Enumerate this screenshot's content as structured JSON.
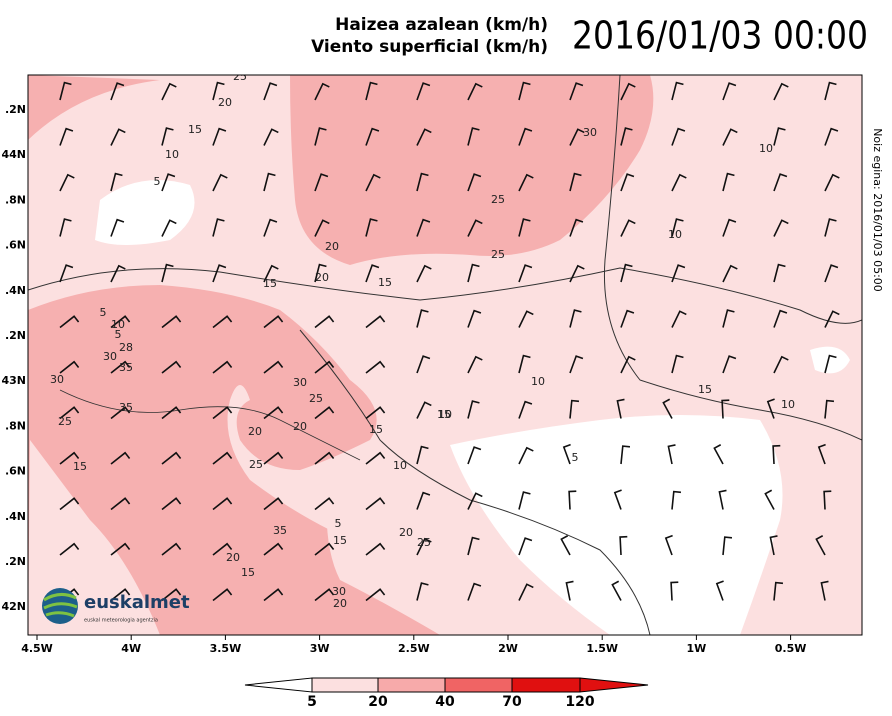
{
  "header": {
    "title_line1": "Haizea azalean (km/h)",
    "title_line2": "Viento superficial (km/h)",
    "date": "2016/01/03 00:00"
  },
  "side_note": "Noiz egina: 2016/01/03 05:00",
  "lat_labels": [
    ".2N",
    "44N",
    ".8N",
    ".6N",
    ".4N",
    ".2N",
    "43N",
    ".8N",
    ".6N",
    ".4N",
    ".2N",
    "42N"
  ],
  "lon_labels": [
    "4.5W",
    "4W",
    "3.5W",
    "3W",
    "2.5W",
    "2W",
    "1.5W",
    "1W",
    "0.5W"
  ],
  "contour_labels": [
    "25",
    "20",
    "15",
    "10",
    "5",
    "30",
    "25",
    "20",
    "25",
    "20",
    "15",
    "15",
    "5",
    "10",
    "5",
    "28",
    "30",
    "35",
    "30",
    "35",
    "25",
    "30",
    "25",
    "15",
    "20",
    "20",
    "15",
    "10",
    "10",
    "10",
    "15",
    "10",
    "5",
    "15",
    "25",
    "35",
    "5",
    "15",
    "20",
    "25",
    "20",
    "15",
    "30",
    "20",
    "10",
    "10"
  ],
  "legend": {
    "ticks": [
      5,
      20,
      40,
      70,
      120
    ]
  },
  "logo": {
    "name": "euskalmet",
    "tagline": "euskal meteorologia agentzia"
  }
}
